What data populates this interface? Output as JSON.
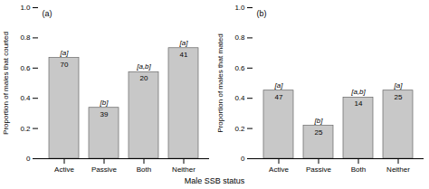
{
  "chart_data": [
    {
      "type": "bar",
      "panel_label": "(a)",
      "categories": [
        "Active",
        "Passive",
        "Both",
        "Neither"
      ],
      "values": [
        0.667,
        0.337,
        0.573,
        0.732
      ],
      "n": [
        70,
        39,
        20,
        41
      ],
      "annotations": [
        "[a]",
        "[b]",
        "[a,b]",
        "[a]"
      ],
      "ylabel": "Proportion of males that courted",
      "ylim": [
        0,
        1
      ],
      "yticks": [
        0,
        0.2,
        0.4,
        0.6,
        0.8,
        {
          "value": 1,
          "label": "1.0"
        }
      ],
      "color": "#c8c8c8"
    },
    {
      "type": "bar",
      "panel_label": "(b)",
      "categories": [
        "Active",
        "Passive",
        "Both",
        "Neither"
      ],
      "values": [
        0.451,
        0.218,
        0.405,
        0.451
      ],
      "n": [
        47,
        25,
        14,
        25
      ],
      "annotations": [
        "[a]",
        "[b]",
        "[a,b]",
        "[a]"
      ],
      "ylabel": "Proportion of males that mated",
      "ylim": [
        0,
        1
      ],
      "yticks": [
        0,
        0.2,
        0.4,
        0.6,
        0.8,
        {
          "value": 1,
          "label": "1.0"
        }
      ],
      "color": "#c8c8c8"
    }
  ],
  "xlabel": "Male SSB status"
}
